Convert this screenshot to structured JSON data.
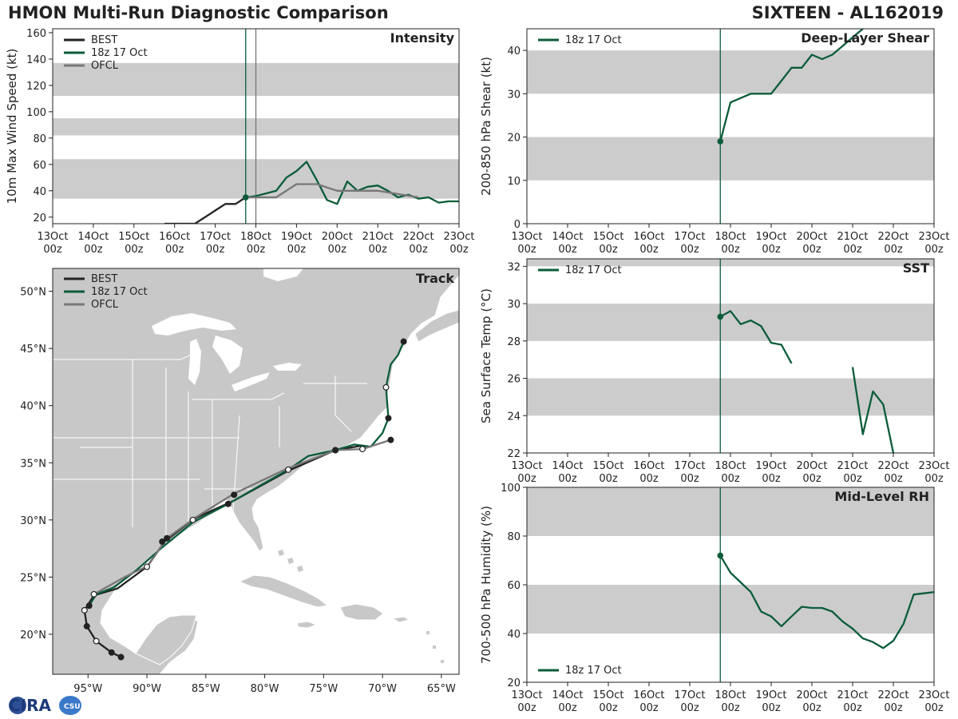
{
  "header": {
    "title_left": "HMON Multi-Run Diagnostic Comparison",
    "title_right": "SIXTEEN - AL162019"
  },
  "logo": {
    "text": "CIRA",
    "sub": "CSU"
  },
  "colors": {
    "best": "#222222",
    "run": "#0b5c3a",
    "ofcl": "#777777",
    "band": "#cccccc",
    "land": "#c8c8c8"
  },
  "time_axis": {
    "day_labels": [
      "13Oct",
      "14Oct",
      "15Oct",
      "16Oct",
      "17Oct",
      "18Oct",
      "19Oct",
      "20Oct",
      "21Oct",
      "22Oct",
      "23Oct"
    ],
    "hour_label": "00z"
  },
  "chart_data": [
    {
      "id": "intensity",
      "type": "line",
      "title": "Intensity",
      "xlabel": "",
      "ylabel": "10m Max Wind Speed (kt)",
      "xlim": [
        0,
        240
      ],
      "ylim": [
        15,
        163
      ],
      "yticks": [
        20,
        40,
        60,
        80,
        100,
        120,
        140,
        160
      ],
      "bands": [
        [
          34,
          64
        ],
        [
          82,
          95
        ],
        [
          112,
          137
        ]
      ],
      "vlines": [
        {
          "x": 114,
          "color": "#0b5c3a"
        },
        {
          "x": 120,
          "color": "#777777"
        }
      ],
      "legend": [
        "BEST",
        "18z 17 Oct",
        "OFCL"
      ],
      "series": [
        {
          "name": "BEST",
          "x": [
            66,
            72,
            78,
            84,
            90,
            96,
            102,
            108,
            114
          ],
          "y": [
            15,
            15,
            15,
            15,
            20,
            25,
            30,
            30,
            35
          ]
        },
        {
          "name": "18z 17 Oct",
          "x": [
            114,
            120,
            126,
            132,
            138,
            144,
            150,
            156,
            162,
            168,
            174,
            180,
            186,
            192,
            198,
            204,
            210,
            216,
            222,
            228,
            234,
            240
          ],
          "y": [
            35,
            36,
            38,
            40,
            50,
            55,
            62,
            48,
            33,
            30,
            47,
            40,
            43,
            44,
            40,
            35,
            37,
            34,
            35,
            31,
            32,
            32
          ]
        },
        {
          "name": "OFCL",
          "x": [
            114,
            120,
            132,
            144,
            156,
            168,
            192,
            216
          ],
          "y": [
            35,
            35,
            35,
            45,
            45,
            40,
            40,
            35
          ]
        }
      ],
      "markers": [
        {
          "series": "18z 17 Oct",
          "x": 114,
          "y": 35
        }
      ]
    },
    {
      "id": "shear",
      "type": "line",
      "title": "Deep-Layer Shear",
      "xlabel": "",
      "ylabel": "200-850 hPa Shear (kt)",
      "xlim": [
        0,
        240
      ],
      "ylim": [
        0,
        45
      ],
      "yticks": [
        0,
        10,
        20,
        30,
        40
      ],
      "bands": [
        [
          10,
          20
        ],
        [
          30,
          40
        ]
      ],
      "vlines": [
        {
          "x": 114,
          "color": "#0b5c3a"
        }
      ],
      "legend": [
        "18z 17 Oct"
      ],
      "series": [
        {
          "name": "18z 17 Oct",
          "x": [
            114,
            120,
            132,
            144,
            150,
            156,
            162,
            168,
            174,
            180,
            186,
            192,
            198
          ],
          "y": [
            19,
            28,
            30,
            30,
            33,
            36,
            36,
            39,
            38,
            39,
            41,
            43,
            45
          ]
        }
      ],
      "markers": [
        {
          "series": "18z 17 Oct",
          "x": 114,
          "y": 19
        }
      ]
    },
    {
      "id": "sst",
      "type": "line",
      "title": "SST",
      "xlabel": "",
      "ylabel": "Sea Surface Temp (°C)",
      "xlim": [
        0,
        240
      ],
      "ylim": [
        22,
        32.4
      ],
      "yticks": [
        22,
        24,
        26,
        28,
        30,
        32
      ],
      "bands": [
        [
          24,
          26
        ],
        [
          28,
          30
        ],
        [
          32,
          34
        ]
      ],
      "vlines": [
        {
          "x": 114,
          "color": "#0b5c3a"
        }
      ],
      "legend": [
        "18z 17 Oct"
      ],
      "series": [
        {
          "name": "18z 17 Oct",
          "segments": [
            {
              "x": [
                114,
                120,
                126,
                132,
                138,
                144,
                150,
                156
              ],
              "y": [
                29.3,
                29.6,
                28.9,
                29.1,
                28.8,
                27.9,
                27.8,
                26.8
              ]
            },
            {
              "x": [
                192,
                198,
                204,
                210,
                216
              ],
              "y": [
                26.6,
                23.0,
                25.3,
                24.6,
                22.0
              ]
            }
          ]
        }
      ],
      "markers": [
        {
          "series": "18z 17 Oct",
          "x": 114,
          "y": 29.3
        }
      ]
    },
    {
      "id": "rh",
      "type": "line",
      "title": "Mid-Level RH",
      "xlabel": "",
      "ylabel": "700-500 hPa Humidity (%)",
      "xlim": [
        0,
        240
      ],
      "ylim": [
        20,
        100
      ],
      "yticks": [
        20,
        40,
        60,
        80,
        100
      ],
      "bands": [
        [
          40,
          60
        ],
        [
          80,
          100
        ]
      ],
      "vlines": [
        {
          "x": 114,
          "color": "#0b5c3a"
        }
      ],
      "legend": [
        "18z 17 Oct"
      ],
      "legend_position": "bottom-left",
      "series": [
        {
          "name": "18z 17 Oct",
          "x": [
            114,
            120,
            126,
            132,
            138,
            144,
            150,
            156,
            162,
            168,
            174,
            180,
            186,
            192,
            198,
            204,
            210,
            216,
            222,
            228,
            234,
            240
          ],
          "y": [
            72,
            65,
            61,
            57,
            49,
            47,
            43,
            47,
            51,
            50.5,
            50.5,
            49,
            45,
            42,
            38,
            36.5,
            34,
            37,
            44,
            56,
            56.5,
            57
          ]
        }
      ],
      "markers": [
        {
          "series": "18z 17 Oct",
          "x": 114,
          "y": 72
        }
      ]
    },
    {
      "id": "track",
      "type": "map",
      "title": "Track",
      "lon_range": [
        -98,
        -63.5
      ],
      "lat_range": [
        16.5,
        52
      ],
      "lon_ticks": [
        -95,
        -90,
        -85,
        -80,
        -75,
        -70,
        -65
      ],
      "lon_labels": [
        "95°W",
        "90°W",
        "85°W",
        "80°W",
        "75°W",
        "70°W",
        "65°W"
      ],
      "lat_ticks": [
        20,
        25,
        30,
        35,
        40,
        45,
        50
      ],
      "lat_labels": [
        "20°N",
        "25°N",
        "30°N",
        "35°N",
        "40°N",
        "45°N",
        "50°N"
      ],
      "legend": [
        "BEST",
        "18z 17 Oct",
        "OFCL"
      ],
      "series": [
        {
          "name": "BEST",
          "lon": [
            -92.2,
            -93.0,
            -94.3,
            -95.1,
            -95.3,
            -94.5,
            -92.5,
            -90.0,
            -88.5,
            -86.0,
            -82.6,
            -78.0,
            -74.0,
            -71.7
          ],
          "lat": [
            18.0,
            18.4,
            19.4,
            20.7,
            22.1,
            23.4,
            24.0,
            25.9,
            28.1,
            30.1,
            31.7,
            34.3,
            36.1,
            36.5
          ],
          "markers": [
            [
              -92.2,
              18.0,
              "filled"
            ],
            [
              -93.0,
              18.4,
              "filled"
            ],
            [
              -94.3,
              19.4,
              "open"
            ],
            [
              -95.1,
              20.7,
              "filled"
            ],
            [
              -95.3,
              22.1,
              "open"
            ]
          ]
        },
        {
          "name": "18z 17 Oct",
          "lon": [
            -94.9,
            -94.3,
            -92.8,
            -90.9,
            -88.7,
            -86.1,
            -83.1,
            -80.4,
            -78.0,
            -76.3,
            -74.0,
            -72.4,
            -71.0,
            -70.0,
            -69.5,
            -69.7,
            -69.3,
            -68.7,
            -68.2
          ],
          "lat": [
            22.5,
            23.5,
            24.1,
            25.6,
            27.6,
            29.8,
            31.4,
            33.0,
            34.4,
            35.6,
            36.1,
            36.6,
            36.4,
            37.6,
            38.9,
            41.6,
            43.6,
            44.4,
            45.6
          ],
          "markers": [
            [
              -94.9,
              22.5,
              "filled"
            ],
            [
              -88.7,
              28.1,
              "filled"
            ],
            [
              -83.1,
              31.4,
              "filled"
            ],
            [
              -74.0,
              36.1,
              "filled"
            ],
            [
              -69.5,
              38.9,
              "filled"
            ],
            [
              -69.7,
              41.6,
              "open"
            ],
            [
              -68.2,
              45.6,
              "filled"
            ]
          ]
        },
        {
          "name": "OFCL",
          "lon": [
            -94.5,
            -91.9,
            -89.9,
            -88.3,
            -85.9,
            -82.6,
            -78.3,
            -74.0,
            -71.7,
            -69.3
          ],
          "lat": [
            23.5,
            25.0,
            26.0,
            28.4,
            30.2,
            32.3,
            34.4,
            36.1,
            36.2,
            37.0
          ],
          "markers": [
            [
              -94.5,
              23.5,
              "open"
            ],
            [
              -90.0,
              25.9,
              "open"
            ],
            [
              -88.3,
              28.4,
              "filled"
            ],
            [
              -86.1,
              30.0,
              "open"
            ],
            [
              -82.6,
              32.2,
              "filled"
            ],
            [
              -78.0,
              34.4,
              "open"
            ],
            [
              -74.0,
              36.1,
              "filled"
            ],
            [
              -71.7,
              36.2,
              "open"
            ],
            [
              -69.3,
              37.0,
              "filled"
            ]
          ]
        }
      ]
    }
  ]
}
